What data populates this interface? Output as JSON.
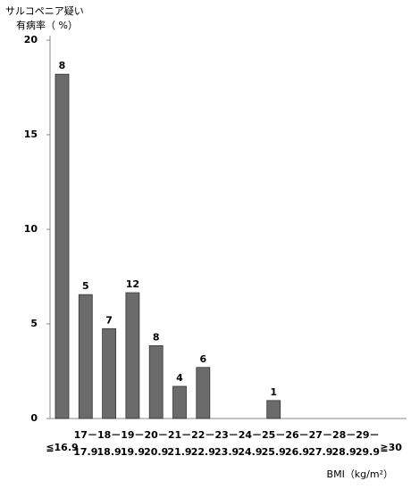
{
  "chart_data": {
    "type": "bar",
    "y_label": [
      "サルコペニア疑い",
      "有病率（ %）"
    ],
    "x_label": "BMI（kg/m²）",
    "categories": [
      [
        "≦16.9"
      ],
      [
        "17－",
        "17.9"
      ],
      [
        "18－",
        "18.9"
      ],
      [
        "19－",
        "19.9"
      ],
      [
        "20－",
        "20.9"
      ],
      [
        "21－",
        "21.9"
      ],
      [
        "22－",
        "22.9"
      ],
      [
        "23－",
        "23.9"
      ],
      [
        "24－",
        "24.9"
      ],
      [
        "25－",
        "25.9"
      ],
      [
        "26－",
        "26.9"
      ],
      [
        "27－",
        "27.9"
      ],
      [
        "28－",
        "28.9"
      ],
      [
        "29－",
        "29.9"
      ],
      [
        "≧30"
      ]
    ],
    "values": [
      18.2,
      6.55,
      4.75,
      6.65,
      3.85,
      1.7,
      2.7,
      0,
      0,
      0.95,
      0,
      0,
      0,
      0,
      0
    ],
    "counts": [
      8,
      5,
      7,
      12,
      8,
      4,
      6,
      null,
      null,
      1,
      null,
      null,
      null,
      null,
      null
    ],
    "color": "#6b6b6b",
    "ylim": [
      0,
      20
    ],
    "yticks": [
      0,
      5,
      10,
      15,
      20
    ]
  }
}
